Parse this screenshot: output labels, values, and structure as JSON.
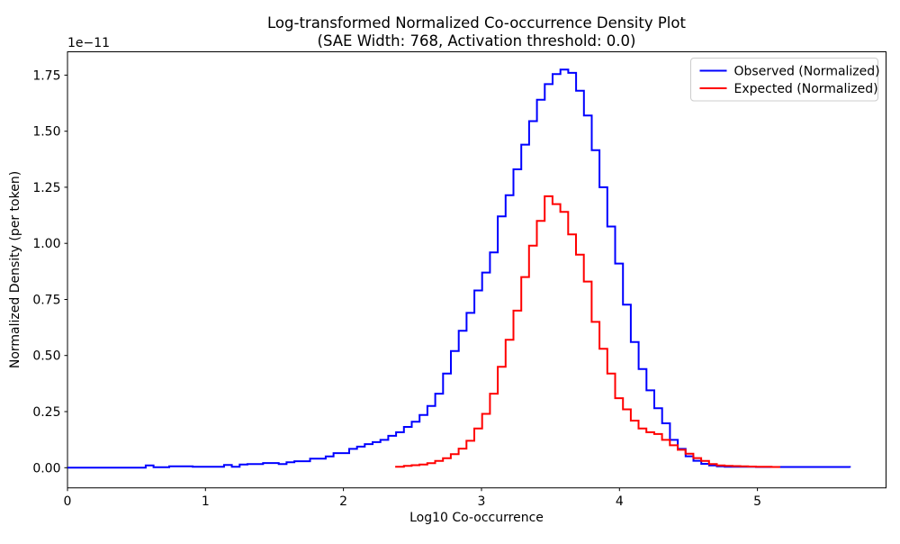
{
  "figure": {
    "background": "#ffffff"
  },
  "chart_data": {
    "type": "line",
    "subtype": "step-histogram",
    "title_line1": "Log-transformed Normalized Co-occurrence Density Plot",
    "title_line2": "(SAE Width: 768, Activation threshold: 0.0)",
    "xlabel": "Log10 Co-occurrence",
    "ylabel": "Normalized Density (per token)",
    "y_offset_text": "1e−11",
    "y_units_multiplier": "1e-11",
    "grid": false,
    "legend_position": "upper right",
    "xlim": [
      0,
      5.932
    ],
    "ylim": [
      -0.09,
      1.854
    ],
    "xticks": [
      0,
      1,
      2,
      3,
      4,
      5
    ],
    "xtick_labels": [
      "0",
      "1",
      "2",
      "3",
      "4",
      "5"
    ],
    "yticks": [
      0.0,
      0.25,
      0.5,
      0.75,
      1.0,
      1.25,
      1.5,
      1.75
    ],
    "ytick_labels": [
      "0.00",
      "0.25",
      "0.50",
      "0.75",
      "1.00",
      "1.25",
      "1.50",
      "1.75"
    ],
    "bin_width": 0.0567,
    "series": [
      {
        "name": "Observed (Normalized)",
        "color": "#0000ff",
        "x_start": 0.0,
        "values": [
          0.0,
          0.0,
          0.0,
          0.0,
          0.0,
          0.0,
          0.0,
          0.0,
          0.0,
          0.0,
          0.01,
          0.002,
          0.002,
          0.006,
          0.006,
          0.006,
          0.004,
          0.004,
          0.004,
          0.004,
          0.012,
          0.004,
          0.014,
          0.016,
          0.016,
          0.021,
          0.021,
          0.016,
          0.024,
          0.029,
          0.029,
          0.04,
          0.04,
          0.05,
          0.065,
          0.065,
          0.084,
          0.094,
          0.105,
          0.114,
          0.124,
          0.142,
          0.158,
          0.182,
          0.205,
          0.235,
          0.275,
          0.33,
          0.42,
          0.52,
          0.61,
          0.69,
          0.79,
          0.87,
          0.96,
          1.12,
          1.215,
          1.33,
          1.44,
          1.545,
          1.64,
          1.71,
          1.755,
          1.775,
          1.76,
          1.68,
          1.57,
          1.415,
          1.25,
          1.075,
          0.91,
          0.727,
          0.56,
          0.44,
          0.345,
          0.265,
          0.198,
          0.124,
          0.084,
          0.051,
          0.031,
          0.017,
          0.01,
          0.006,
          0.004,
          0.004,
          0.004,
          0.004,
          0.003,
          0.003,
          0.003,
          0.003,
          0.003,
          0.003,
          0.003,
          0.003,
          0.003,
          0.003,
          0.003,
          0.003
        ]
      },
      {
        "name": "Expected (Normalized)",
        "color": "#ff0000",
        "x_start": 2.381,
        "values": [
          0.004,
          0.008,
          0.011,
          0.014,
          0.02,
          0.03,
          0.042,
          0.06,
          0.085,
          0.12,
          0.175,
          0.24,
          0.33,
          0.45,
          0.57,
          0.7,
          0.85,
          0.99,
          1.1,
          1.21,
          1.175,
          1.14,
          1.04,
          0.95,
          0.83,
          0.65,
          0.53,
          0.42,
          0.31,
          0.26,
          0.21,
          0.175,
          0.158,
          0.15,
          0.124,
          0.1,
          0.08,
          0.062,
          0.043,
          0.03,
          0.016,
          0.01,
          0.008,
          0.007,
          0.006,
          0.005,
          0.004,
          0.004,
          0.003
        ]
      }
    ]
  }
}
